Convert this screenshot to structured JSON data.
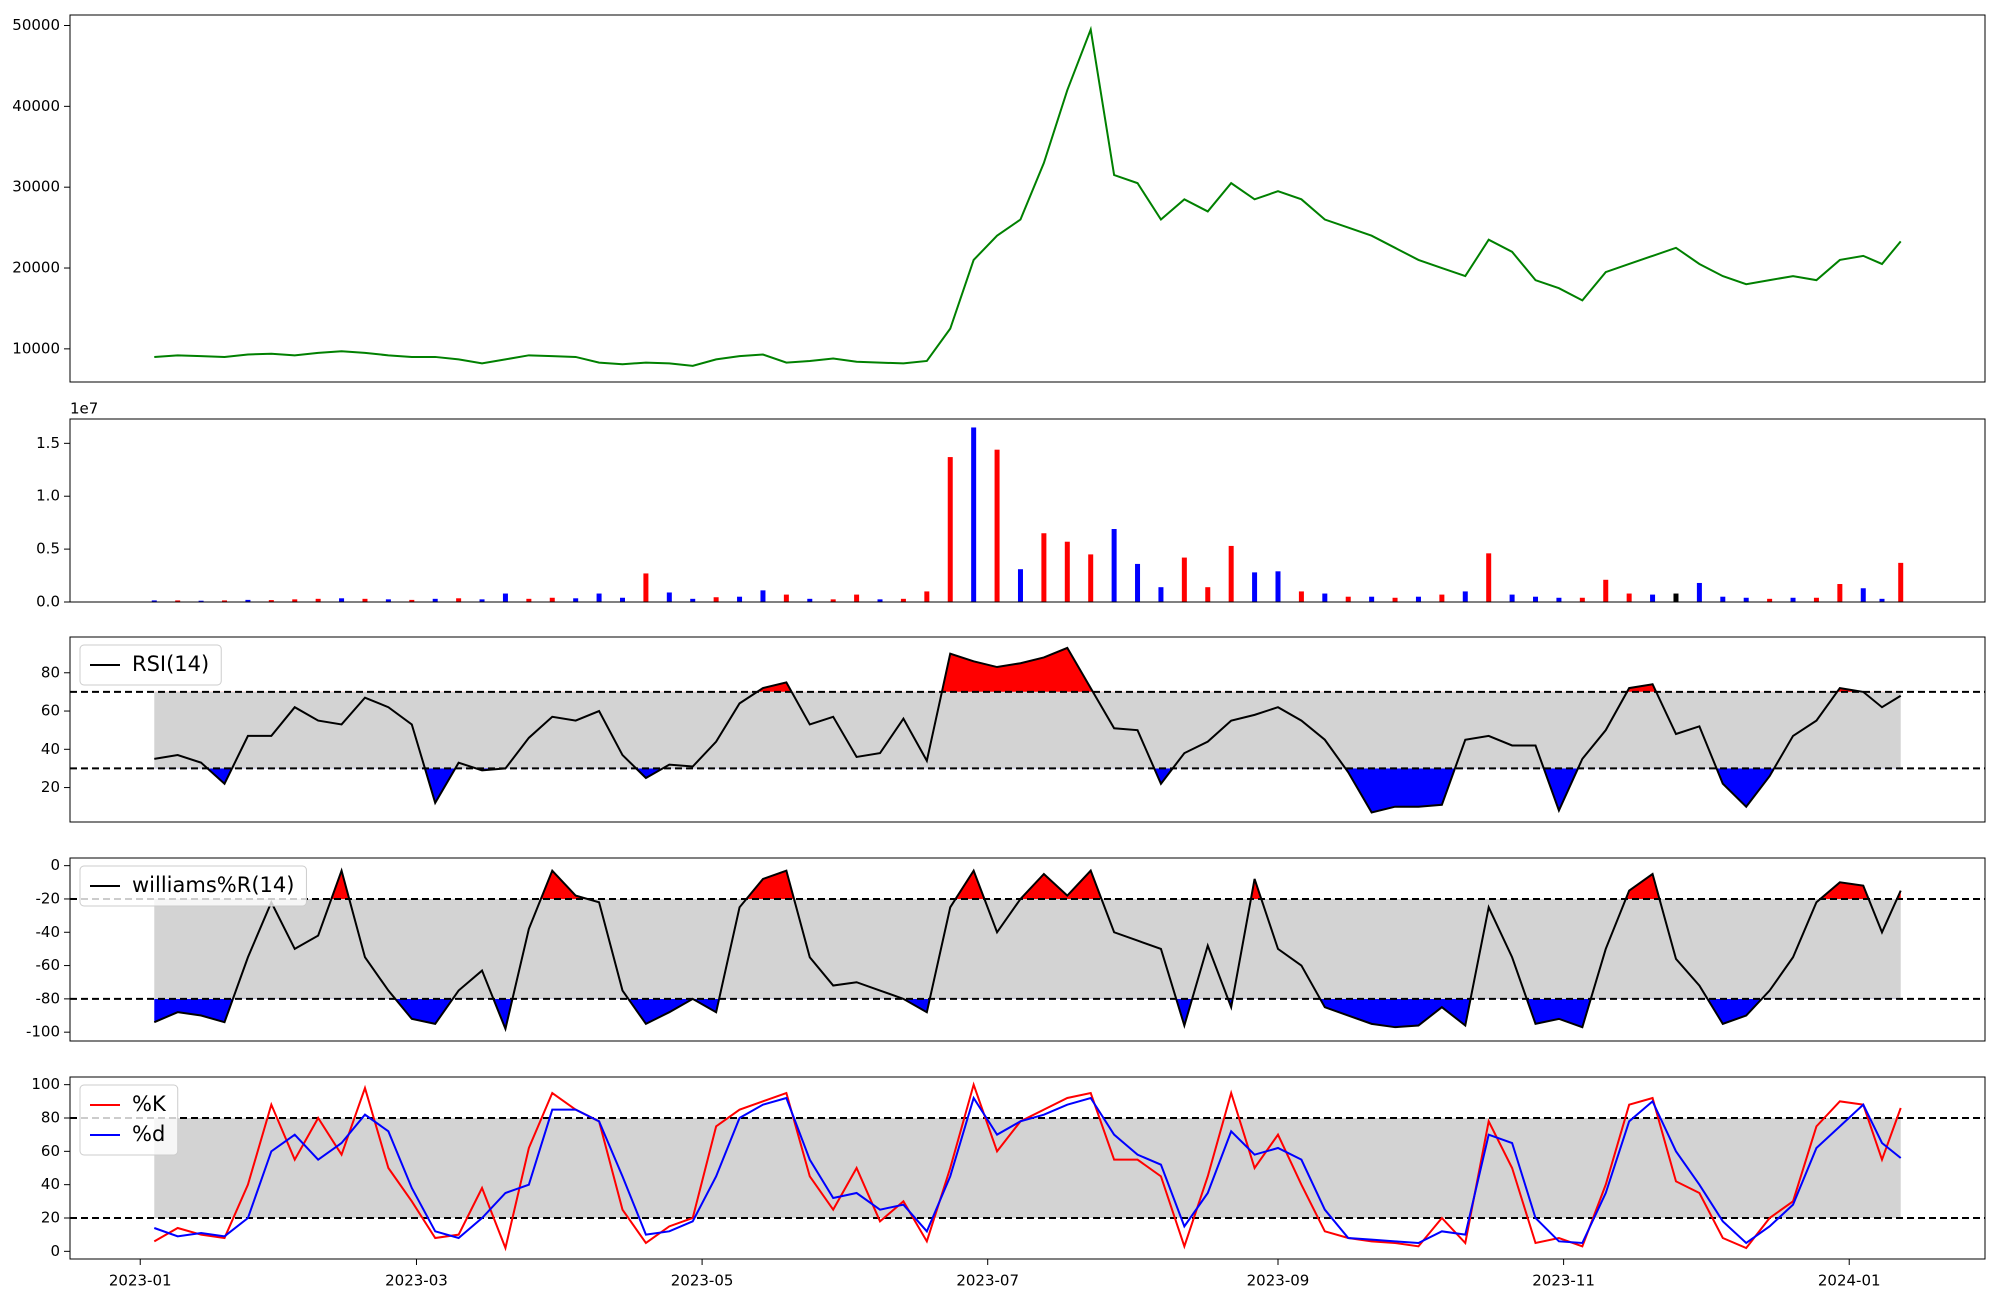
{
  "chart_data": [
    {
      "type": "line",
      "color": "green",
      "x": [
        "2023-01-04",
        "2023-01-09",
        "2023-01-14",
        "2023-01-19",
        "2023-01-24",
        "2023-01-29",
        "2023-02-03",
        "2023-02-08",
        "2023-02-13",
        "2023-02-18",
        "2023-02-23",
        "2023-02-28",
        "2023-03-05",
        "2023-03-10",
        "2023-03-15",
        "2023-03-20",
        "2023-03-25",
        "2023-03-30",
        "2023-04-04",
        "2023-04-09",
        "2023-04-14",
        "2023-04-19",
        "2023-04-24",
        "2023-04-29",
        "2023-05-04",
        "2023-05-09",
        "2023-05-14",
        "2023-05-19",
        "2023-05-24",
        "2023-05-29",
        "2023-06-03",
        "2023-06-08",
        "2023-06-13",
        "2023-06-18",
        "2023-06-23",
        "2023-06-28",
        "2023-07-03",
        "2023-07-08",
        "2023-07-13",
        "2023-07-18",
        "2023-07-23",
        "2023-07-28",
        "2023-08-02",
        "2023-08-07",
        "2023-08-12",
        "2023-08-17",
        "2023-08-22",
        "2023-08-27",
        "2023-09-01",
        "2023-09-06",
        "2023-09-11",
        "2023-09-16",
        "2023-09-21",
        "2023-09-26",
        "2023-10-01",
        "2023-10-06",
        "2023-10-11",
        "2023-10-16",
        "2023-10-21",
        "2023-10-26",
        "2023-10-31",
        "2023-11-05",
        "2023-11-10",
        "2023-11-15",
        "2023-11-20",
        "2023-11-25",
        "2023-11-30",
        "2023-12-05",
        "2023-12-10",
        "2023-12-15",
        "2023-12-20",
        "2023-12-25",
        "2023-12-30",
        "2024-01-04",
        "2024-01-08",
        "2024-01-12"
      ],
      "values": [
        9000,
        9200,
        9100,
        9000,
        9300,
        9400,
        9200,
        9500,
        9700,
        9500,
        9200,
        9000,
        9000,
        8700,
        8200,
        8700,
        9200,
        9100,
        9000,
        8300,
        8100,
        8300,
        8200,
        7900,
        8700,
        9100,
        9300,
        8300,
        8500,
        8800,
        8400,
        8300,
        8200,
        8500,
        12500,
        21000,
        24000,
        26000,
        33000,
        42000,
        49500,
        31500,
        30500,
        26000,
        28500,
        27000,
        30500,
        28500,
        29500,
        28500,
        26000,
        25000,
        24000,
        22500,
        21000,
        20000,
        19000,
        23500,
        22000,
        18500,
        17500,
        16000,
        19500,
        20500,
        21500,
        22500,
        20500,
        19000,
        18000,
        18500,
        19000,
        18500,
        21000,
        21500,
        20500,
        23300
      ],
      "xlim": [
        "2022-12-17",
        "2024-01-30"
      ],
      "ylim": [
        5900,
        51300
      ],
      "yticks": [
        10000,
        20000,
        30000,
        40000,
        50000
      ]
    },
    {
      "type": "bar",
      "offset_label": "1e7",
      "x": [
        "2023-01-04",
        "2023-01-09",
        "2023-01-14",
        "2023-01-19",
        "2023-01-24",
        "2023-01-29",
        "2023-02-03",
        "2023-02-08",
        "2023-02-13",
        "2023-02-18",
        "2023-02-23",
        "2023-02-28",
        "2023-03-05",
        "2023-03-10",
        "2023-03-15",
        "2023-03-20",
        "2023-03-25",
        "2023-03-30",
        "2023-04-04",
        "2023-04-09",
        "2023-04-14",
        "2023-04-19",
        "2023-04-24",
        "2023-04-29",
        "2023-05-04",
        "2023-05-09",
        "2023-05-14",
        "2023-05-19",
        "2023-05-24",
        "2023-05-29",
        "2023-06-03",
        "2023-06-08",
        "2023-06-13",
        "2023-06-18",
        "2023-06-23",
        "2023-06-28",
        "2023-07-03",
        "2023-07-08",
        "2023-07-13",
        "2023-07-18",
        "2023-07-23",
        "2023-07-28",
        "2023-08-02",
        "2023-08-07",
        "2023-08-12",
        "2023-08-17",
        "2023-08-22",
        "2023-08-27",
        "2023-09-01",
        "2023-09-06",
        "2023-09-11",
        "2023-09-16",
        "2023-09-21",
        "2023-09-26",
        "2023-10-01",
        "2023-10-06",
        "2023-10-11",
        "2023-10-16",
        "2023-10-21",
        "2023-10-26",
        "2023-10-31",
        "2023-11-05",
        "2023-11-10",
        "2023-11-15",
        "2023-11-20",
        "2023-11-25",
        "2023-11-30",
        "2023-12-05",
        "2023-12-10",
        "2023-12-15",
        "2023-12-20",
        "2023-12-25",
        "2023-12-30",
        "2024-01-04",
        "2024-01-08",
        "2024-01-12"
      ],
      "values": [
        150000,
        150000,
        120000,
        150000,
        200000,
        180000,
        250000,
        300000,
        350000,
        300000,
        250000,
        200000,
        300000,
        350000,
        250000,
        800000,
        300000,
        400000,
        350000,
        800000,
        400000,
        2700000,
        900000,
        300000,
        450000,
        500000,
        1100000,
        700000,
        300000,
        250000,
        700000,
        250000,
        300000,
        1000000,
        13700000,
        16500000,
        14400000,
        3100000,
        6500000,
        5700000,
        4500000,
        6900000,
        3600000,
        1400000,
        4200000,
        1400000,
        5300000,
        2800000,
        2900000,
        1000000,
        800000,
        500000,
        500000,
        400000,
        500000,
        700000,
        1000000,
        4600000,
        700000,
        500000,
        400000,
        400000,
        2100000,
        800000,
        700000,
        800000,
        1800000,
        500000,
        400000,
        300000,
        400000,
        400000,
        1700000,
        1300000,
        300000,
        3700000
      ],
      "colors": [
        "blue",
        "red",
        "blue",
        "red",
        "blue",
        "red",
        "red",
        "red",
        "blue",
        "red",
        "blue",
        "red",
        "blue",
        "red",
        "blue",
        "blue",
        "red",
        "red",
        "blue",
        "blue",
        "blue",
        "red",
        "blue",
        "blue",
        "red",
        "blue",
        "blue",
        "red",
        "blue",
        "red",
        "red",
        "blue",
        "red",
        "red",
        "red",
        "blue",
        "red",
        "blue",
        "red",
        "red",
        "red",
        "blue",
        "blue",
        "blue",
        "red",
        "red",
        "red",
        "blue",
        "blue",
        "red",
        "blue",
        "red",
        "blue",
        "red",
        "blue",
        "red",
        "blue",
        "red",
        "blue",
        "blue",
        "blue",
        "red",
        "red",
        "red",
        "blue",
        "black",
        "blue",
        "blue",
        "blue",
        "red",
        "blue",
        "red",
        "red",
        "blue",
        "blue",
        "red"
      ],
      "xlim": [
        "2022-12-17",
        "2024-01-30"
      ],
      "ylim": [
        0,
        17300000
      ],
      "yticks": [
        {
          "value": 0,
          "label": "0.0"
        },
        {
          "value": 5000000,
          "label": "0.5"
        },
        {
          "value": 10000000,
          "label": "1.0"
        },
        {
          "value": 15000000,
          "label": "1.5"
        }
      ]
    },
    {
      "type": "line",
      "legend": "upper left",
      "hlines": [
        70,
        30
      ],
      "band_color": "#d3d3d3",
      "above_color": "red",
      "below_color": "blue",
      "x": [
        "2023-01-04",
        "2023-01-09",
        "2023-01-14",
        "2023-01-19",
        "2023-01-24",
        "2023-01-29",
        "2023-02-03",
        "2023-02-08",
        "2023-02-13",
        "2023-02-18",
        "2023-02-23",
        "2023-02-28",
        "2023-03-05",
        "2023-03-10",
        "2023-03-15",
        "2023-03-20",
        "2023-03-25",
        "2023-03-30",
        "2023-04-04",
        "2023-04-09",
        "2023-04-14",
        "2023-04-19",
        "2023-04-24",
        "2023-04-29",
        "2023-05-04",
        "2023-05-09",
        "2023-05-14",
        "2023-05-19",
        "2023-05-24",
        "2023-05-29",
        "2023-06-03",
        "2023-06-08",
        "2023-06-13",
        "2023-06-18",
        "2023-06-23",
        "2023-06-28",
        "2023-07-03",
        "2023-07-08",
        "2023-07-13",
        "2023-07-18",
        "2023-07-23",
        "2023-07-28",
        "2023-08-02",
        "2023-08-07",
        "2023-08-12",
        "2023-08-17",
        "2023-08-22",
        "2023-08-27",
        "2023-09-01",
        "2023-09-06",
        "2023-09-11",
        "2023-09-16",
        "2023-09-21",
        "2023-09-26",
        "2023-10-01",
        "2023-10-06",
        "2023-10-11",
        "2023-10-16",
        "2023-10-21",
        "2023-10-26",
        "2023-10-31",
        "2023-11-05",
        "2023-11-10",
        "2023-11-15",
        "2023-11-20",
        "2023-11-25",
        "2023-11-30",
        "2023-12-05",
        "2023-12-10",
        "2023-12-15",
        "2023-12-20",
        "2023-12-25",
        "2023-12-30",
        "2024-01-04",
        "2024-01-08",
        "2024-01-12"
      ],
      "series": [
        {
          "name": "RSI(14)",
          "color": "black",
          "values": [
            35,
            37,
            33,
            22,
            47,
            47,
            62,
            55,
            53,
            67,
            62,
            53,
            12,
            33,
            29,
            30,
            46,
            57,
            55,
            60,
            37,
            25,
            32,
            31,
            44,
            64,
            72,
            75,
            53,
            57,
            36,
            38,
            56,
            34,
            90,
            86,
            83,
            85,
            88,
            93,
            72,
            51,
            50,
            22,
            38,
            44,
            55,
            58,
            62,
            55,
            45,
            28,
            7,
            10,
            10,
            11,
            45,
            47,
            42,
            42,
            8,
            35,
            50,
            72,
            74,
            48,
            52,
            22,
            10,
            26,
            47,
            55,
            72,
            70,
            62,
            68
          ]
        }
      ],
      "xlim": [
        "2022-12-17",
        "2024-01-30"
      ],
      "ylim": [
        2,
        98.7
      ],
      "yticks": [
        20,
        40,
        60,
        80
      ]
    },
    {
      "type": "line",
      "legend": "upper left",
      "hlines": [
        -20,
        -80
      ],
      "band_color": "#d3d3d3",
      "above_color": "red",
      "below_color": "blue",
      "x": [
        "2023-01-04",
        "2023-01-09",
        "2023-01-14",
        "2023-01-19",
        "2023-01-24",
        "2023-01-29",
        "2023-02-03",
        "2023-02-08",
        "2023-02-13",
        "2023-02-18",
        "2023-02-23",
        "2023-02-28",
        "2023-03-05",
        "2023-03-10",
        "2023-03-15",
        "2023-03-20",
        "2023-03-25",
        "2023-03-30",
        "2023-04-04",
        "2023-04-09",
        "2023-04-14",
        "2023-04-19",
        "2023-04-24",
        "2023-04-29",
        "2023-05-04",
        "2023-05-09",
        "2023-05-14",
        "2023-05-19",
        "2023-05-24",
        "2023-05-29",
        "2023-06-03",
        "2023-06-08",
        "2023-06-13",
        "2023-06-18",
        "2023-06-23",
        "2023-06-28",
        "2023-07-03",
        "2023-07-08",
        "2023-07-13",
        "2023-07-18",
        "2023-07-23",
        "2023-07-28",
        "2023-08-02",
        "2023-08-07",
        "2023-08-12",
        "2023-08-17",
        "2023-08-22",
        "2023-08-27",
        "2023-09-01",
        "2023-09-06",
        "2023-09-11",
        "2023-09-16",
        "2023-09-21",
        "2023-09-26",
        "2023-10-01",
        "2023-10-06",
        "2023-10-11",
        "2023-10-16",
        "2023-10-21",
        "2023-10-26",
        "2023-10-31",
        "2023-11-05",
        "2023-11-10",
        "2023-11-15",
        "2023-11-20",
        "2023-11-25",
        "2023-11-30",
        "2023-12-05",
        "2023-12-10",
        "2023-12-15",
        "2023-12-20",
        "2023-12-25",
        "2023-12-30",
        "2024-01-04",
        "2024-01-08",
        "2024-01-12"
      ],
      "series": [
        {
          "name": "williams%R(14)",
          "color": "black",
          "values": [
            -94,
            -88,
            -90,
            -94,
            -55,
            -22,
            -50,
            -42,
            -3,
            -55,
            -75,
            -92,
            -95,
            -75,
            -63,
            -98,
            -38,
            -3,
            -18,
            -22,
            -75,
            -95,
            -88,
            -80,
            -88,
            -25,
            -8,
            -3,
            -55,
            -72,
            -70,
            -75,
            -80,
            -88,
            -25,
            -3,
            -40,
            -20,
            -5,
            -18,
            -3,
            -40,
            -45,
            -50,
            -96,
            -48,
            -85,
            -8,
            -50,
            -60,
            -85,
            -90,
            -95,
            -97,
            -96,
            -85,
            -96,
            -25,
            -55,
            -95,
            -92,
            -97,
            -50,
            -15,
            -5,
            -56,
            -72,
            -95,
            -90,
            -75,
            -55,
            -22,
            -10,
            -12,
            -40,
            -15
          ]
        }
      ],
      "xlim": [
        "2022-12-17",
        "2024-01-30"
      ],
      "ylim": [
        -105.3,
        4.6
      ],
      "yticks": [
        0,
        -20,
        -40,
        -60,
        -80,
        -100
      ]
    },
    {
      "type": "line",
      "legend": "upper left",
      "hlines": [
        80,
        20
      ],
      "band_color": "#d3d3d3",
      "x": [
        "2023-01-04",
        "2023-01-09",
        "2023-01-14",
        "2023-01-19",
        "2023-01-24",
        "2023-01-29",
        "2023-02-03",
        "2023-02-08",
        "2023-02-13",
        "2023-02-18",
        "2023-02-23",
        "2023-02-28",
        "2023-03-05",
        "2023-03-10",
        "2023-03-15",
        "2023-03-20",
        "2023-03-25",
        "2023-03-30",
        "2023-04-04",
        "2023-04-09",
        "2023-04-14",
        "2023-04-19",
        "2023-04-24",
        "2023-04-29",
        "2023-05-04",
        "2023-05-09",
        "2023-05-14",
        "2023-05-19",
        "2023-05-24",
        "2023-05-29",
        "2023-06-03",
        "2023-06-08",
        "2023-06-13",
        "2023-06-18",
        "2023-06-23",
        "2023-06-28",
        "2023-07-03",
        "2023-07-08",
        "2023-07-13",
        "2023-07-18",
        "2023-07-23",
        "2023-07-28",
        "2023-08-02",
        "2023-08-07",
        "2023-08-12",
        "2023-08-17",
        "2023-08-22",
        "2023-08-27",
        "2023-09-01",
        "2023-09-06",
        "2023-09-11",
        "2023-09-16",
        "2023-09-21",
        "2023-09-26",
        "2023-10-01",
        "2023-10-06",
        "2023-10-11",
        "2023-10-16",
        "2023-10-21",
        "2023-10-26",
        "2023-10-31",
        "2023-11-05",
        "2023-11-10",
        "2023-11-15",
        "2023-11-20",
        "2023-11-25",
        "2023-11-30",
        "2023-12-05",
        "2023-12-10",
        "2023-12-15",
        "2023-12-20",
        "2023-12-25",
        "2023-12-30",
        "2024-01-04",
        "2024-01-08",
        "2024-01-12"
      ],
      "series": [
        {
          "name": "%K",
          "color": "red",
          "values": [
            6,
            14,
            10,
            8,
            40,
            88,
            55,
            80,
            58,
            98,
            50,
            30,
            8,
            10,
            38,
            2,
            62,
            95,
            85,
            78,
            25,
            5,
            15,
            20,
            75,
            85,
            90,
            95,
            45,
            25,
            50,
            18,
            30,
            6,
            50,
            100,
            60,
            78,
            85,
            92,
            95,
            55,
            55,
            45,
            3,
            45,
            95,
            50,
            70,
            40,
            12,
            8,
            6,
            5,
            3,
            20,
            5,
            78,
            50,
            5,
            8,
            3,
            40,
            88,
            92,
            42,
            35,
            8,
            2,
            20,
            30,
            75,
            90,
            88,
            55,
            86
          ]
        },
        {
          "name": "%d",
          "color": "blue",
          "values": [
            14,
            9,
            11,
            9,
            20,
            60,
            70,
            55,
            65,
            82,
            72,
            38,
            12,
            8,
            20,
            35,
            40,
            85,
            85,
            78,
            45,
            10,
            12,
            18,
            45,
            80,
            88,
            92,
            55,
            32,
            35,
            25,
            28,
            12,
            45,
            92,
            70,
            78,
            82,
            88,
            92,
            70,
            58,
            52,
            15,
            35,
            72,
            58,
            62,
            55,
            25,
            8,
            7,
            6,
            5,
            12,
            10,
            70,
            65,
            20,
            6,
            5,
            35,
            78,
            90,
            60,
            40,
            18,
            5,
            15,
            28,
            62,
            75,
            88,
            65,
            56
          ]
        }
      ],
      "xlim": [
        "2022-12-17",
        "2024-01-30"
      ],
      "ylim": [
        -4.6,
        104.6
      ],
      "yticks": [
        0,
        20,
        40,
        60,
        80,
        100
      ],
      "xticks": [
        "2023-01",
        "2023-03",
        "2023-05",
        "2023-07",
        "2023-09",
        "2023-11",
        "2024-01"
      ]
    }
  ]
}
